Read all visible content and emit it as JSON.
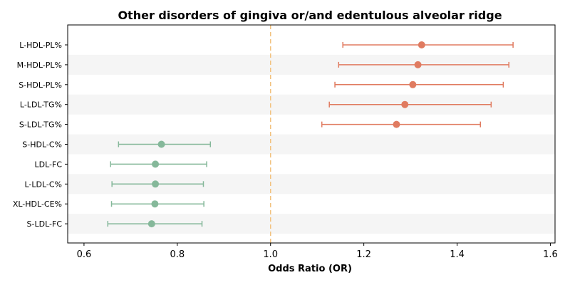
{
  "chart_data": {
    "type": "forest",
    "title": "Other disorders of gingiva or/and edentulous alveolar ridge",
    "xlabel": "Odds Ratio (OR)",
    "ylabel": "",
    "xlim": [
      0.565,
      1.61
    ],
    "xticks": [
      "0.6",
      "0.8",
      "1.0",
      "1.2",
      "1.4",
      "1.6"
    ],
    "reference_line": 1.0,
    "grid": false,
    "row_banding": true,
    "colors": {
      "positive": "#e07b60",
      "negative": "#85b89a",
      "reference_line": "#f2c27f",
      "band": "#f5f5f5"
    },
    "rows": [
      {
        "label": "L-HDL-PL%",
        "or": 1.324,
        "lower": 1.155,
        "upper": 1.52,
        "group": "positive"
      },
      {
        "label": "M-HDL-PL%",
        "or": 1.316,
        "lower": 1.146,
        "upper": 1.511,
        "group": "positive"
      },
      {
        "label": "S-HDL-PL%",
        "or": 1.305,
        "lower": 1.138,
        "upper": 1.499,
        "group": "positive"
      },
      {
        "label": "L-LDL-TG%",
        "or": 1.288,
        "lower": 1.126,
        "upper": 1.473,
        "group": "positive"
      },
      {
        "label": "S-LDL-TG%",
        "or": 1.27,
        "lower": 1.11,
        "upper": 1.45,
        "group": "positive"
      },
      {
        "label": "S-HDL-C%",
        "or": 0.766,
        "lower": 0.674,
        "upper": 0.871,
        "group": "negative"
      },
      {
        "label": "LDL-FC",
        "or": 0.753,
        "lower": 0.657,
        "upper": 0.863,
        "group": "negative"
      },
      {
        "label": "L-LDL-C%",
        "or": 0.753,
        "lower": 0.66,
        "upper": 0.856,
        "group": "negative"
      },
      {
        "label": "XL-HDL-CE%",
        "or": 0.752,
        "lower": 0.659,
        "upper": 0.857,
        "group": "negative"
      },
      {
        "label": "S-LDL-FC",
        "or": 0.745,
        "lower": 0.651,
        "upper": 0.853,
        "group": "negative"
      }
    ]
  }
}
